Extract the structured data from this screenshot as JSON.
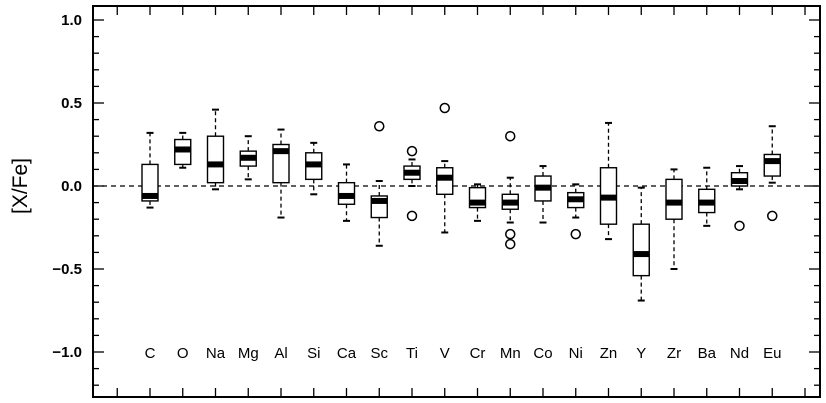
{
  "chart_data": {
    "type": "box",
    "title": "",
    "xlabel": "",
    "ylabel": "[X/Fe]",
    "ylim": [
      -1.25,
      1.1
    ],
    "yticks": [
      1.0,
      0.5,
      0.0,
      -0.5,
      -1.0
    ],
    "ytick_labels": [
      "1.0",
      "0.5",
      "0.0",
      "−0.5",
      "−1.0"
    ],
    "reference_line": {
      "y": 0.0,
      "style": "dashed"
    },
    "grid": false,
    "categories": [
      "C",
      "O",
      "Na",
      "Mg",
      "Al",
      "Si",
      "Ca",
      "Sc",
      "Ti",
      "V",
      "Cr",
      "Mn",
      "Co",
      "Ni",
      "Zn",
      "Y",
      "Zr",
      "Ba",
      "Nd",
      "Eu"
    ],
    "boxes": [
      {
        "label": "C",
        "whisker_low": -0.13,
        "q1": -0.09,
        "median": -0.06,
        "q3": 0.13,
        "whisker_high": 0.32,
        "outliers": []
      },
      {
        "label": "O",
        "whisker_low": 0.11,
        "q1": 0.13,
        "median": 0.22,
        "q3": 0.28,
        "whisker_high": 0.32,
        "outliers": []
      },
      {
        "label": "Na",
        "whisker_low": -0.02,
        "q1": 0.02,
        "median": 0.13,
        "q3": 0.3,
        "whisker_high": 0.46,
        "outliers": []
      },
      {
        "label": "Mg",
        "whisker_low": 0.04,
        "q1": 0.12,
        "median": 0.17,
        "q3": 0.21,
        "whisker_high": 0.3,
        "outliers": []
      },
      {
        "label": "Al",
        "whisker_low": -0.19,
        "q1": 0.02,
        "median": 0.21,
        "q3": 0.25,
        "whisker_high": 0.34,
        "outliers": []
      },
      {
        "label": "Si",
        "whisker_low": -0.05,
        "q1": 0.04,
        "median": 0.13,
        "q3": 0.2,
        "whisker_high": 0.26,
        "outliers": []
      },
      {
        "label": "Ca",
        "whisker_low": -0.21,
        "q1": -0.11,
        "median": -0.06,
        "q3": 0.02,
        "whisker_high": 0.13,
        "outliers": []
      },
      {
        "label": "Sc",
        "whisker_low": -0.36,
        "q1": -0.19,
        "median": -0.09,
        "q3": -0.06,
        "whisker_high": 0.03,
        "outliers": [
          0.36
        ]
      },
      {
        "label": "Ti",
        "whisker_low": 0.0,
        "q1": 0.04,
        "median": 0.08,
        "q3": 0.12,
        "whisker_high": 0.16,
        "outliers": [
          0.21,
          -0.18
        ]
      },
      {
        "label": "V",
        "whisker_low": -0.28,
        "q1": -0.05,
        "median": 0.05,
        "q3": 0.11,
        "whisker_high": 0.15,
        "outliers": [
          0.47
        ]
      },
      {
        "label": "Cr",
        "whisker_low": -0.21,
        "q1": -0.13,
        "median": -0.1,
        "q3": -0.01,
        "whisker_high": 0.01,
        "outliers": []
      },
      {
        "label": "Mn",
        "whisker_low": -0.22,
        "q1": -0.14,
        "median": -0.1,
        "q3": -0.05,
        "whisker_high": 0.05,
        "outliers": [
          0.3,
          -0.29,
          -0.35
        ]
      },
      {
        "label": "Co",
        "whisker_low": -0.22,
        "q1": -0.09,
        "median": -0.01,
        "q3": 0.06,
        "whisker_high": 0.12,
        "outliers": []
      },
      {
        "label": "Ni",
        "whisker_low": -0.19,
        "q1": -0.13,
        "median": -0.08,
        "q3": -0.04,
        "whisker_high": 0.01,
        "outliers": [
          -0.29
        ]
      },
      {
        "label": "Zn",
        "whisker_low": -0.32,
        "q1": -0.23,
        "median": -0.07,
        "q3": 0.11,
        "whisker_high": 0.38,
        "outliers": []
      },
      {
        "label": "Y",
        "whisker_low": -0.69,
        "q1": -0.54,
        "median": -0.41,
        "q3": -0.23,
        "whisker_high": -0.01,
        "outliers": []
      },
      {
        "label": "Zr",
        "whisker_low": -0.5,
        "q1": -0.2,
        "median": -0.1,
        "q3": 0.04,
        "whisker_high": 0.1,
        "outliers": []
      },
      {
        "label": "Ba",
        "whisker_low": -0.24,
        "q1": -0.16,
        "median": -0.1,
        "q3": -0.02,
        "whisker_high": 0.11,
        "outliers": []
      },
      {
        "label": "Nd",
        "whisker_low": -0.02,
        "q1": 0.0,
        "median": 0.03,
        "q3": 0.08,
        "whisker_high": 0.12,
        "outliers": [
          -0.24
        ]
      },
      {
        "label": "Eu",
        "whisker_low": 0.02,
        "q1": 0.06,
        "median": 0.15,
        "q3": 0.19,
        "whisker_high": 0.36,
        "outliers": [
          -0.18
        ]
      }
    ]
  }
}
